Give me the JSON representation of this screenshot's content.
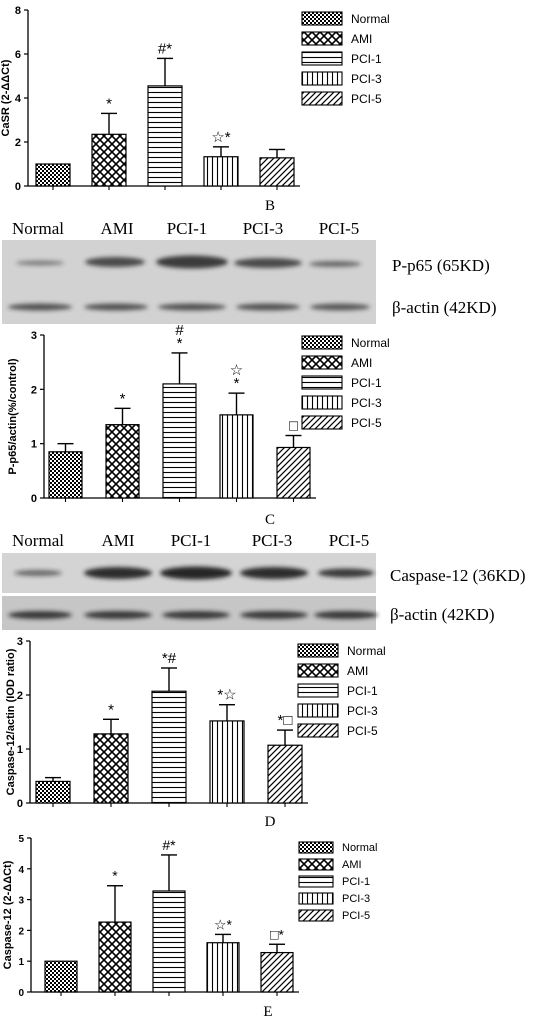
{
  "panels": [
    {
      "id": "B",
      "panel_letter": "B",
      "ylabel": "CaSR (2-ΔΔCt)",
      "ylim": [
        0,
        8
      ],
      "yticks": [
        "0",
        "2",
        "4",
        "6",
        "8"
      ],
      "marker_style": "star",
      "categories": [
        "Normal",
        "AMI",
        "PCI-1",
        "PCI-3",
        "PCI-5"
      ],
      "values": [
        1.0,
        2.35,
        4.55,
        1.33,
        1.28
      ],
      "errors": [
        0.0,
        0.95,
        1.25,
        0.45,
        0.38
      ],
      "annotations": [
        "",
        "*",
        "#*",
        "☆*",
        ""
      ],
      "legend": [
        "Normal",
        "AMI",
        "PCI-1",
        "PCI-3",
        "PCI-5"
      ]
    },
    {
      "id": "C",
      "panel_letter": "C",
      "ylabel": "P-p65/actin(%/control)",
      "ylim": [
        0,
        3
      ],
      "yticks": [
        "0",
        "1",
        "2",
        "3"
      ],
      "marker_style": "star",
      "categories": [
        "Normal",
        "AMI",
        "PCI-1",
        "PCI-3",
        "PCI-5"
      ],
      "values": [
        0.85,
        1.35,
        2.1,
        1.53,
        0.93
      ],
      "errors": [
        0.15,
        0.3,
        0.57,
        0.4,
        0.22
      ],
      "annotations": [
        "",
        "*",
        "#\n*",
        "☆\n*",
        "□"
      ],
      "legend": [
        "Normal",
        "AMI",
        "PCI-1",
        "PCI-3",
        "PCI-5"
      ]
    },
    {
      "id": "D",
      "panel_letter": "D",
      "ylabel": "Caspase-12/actin (IOD ratio)",
      "ylim": [
        0,
        3
      ],
      "yticks": [
        "0",
        "1",
        "2",
        "3"
      ],
      "marker_style": "star",
      "categories": [
        "Normal",
        "AMI",
        "PCI-1",
        "PCI-3",
        "PCI-5"
      ],
      "values": [
        0.4,
        1.28,
        2.07,
        1.52,
        1.07
      ],
      "errors": [
        0.07,
        0.27,
        0.43,
        0.3,
        0.28
      ],
      "annotations": [
        "",
        "*",
        "*#",
        "*☆",
        "*□"
      ],
      "legend": [
        "Normal",
        "AMI",
        "PCI-1",
        "PCI-3",
        "PCI-5"
      ]
    },
    {
      "id": "E",
      "panel_letter": "E",
      "ylabel": "Caspase-12 (2-ΔΔCt)",
      "ylim": [
        0,
        5
      ],
      "yticks": [
        "0",
        "1",
        "2",
        "3",
        "4",
        "5"
      ],
      "marker_style": "star",
      "categories": [
        "Normal",
        "AMI",
        "PCI-1",
        "PCI-3",
        "PCI-5"
      ],
      "values": [
        1.0,
        2.27,
        3.28,
        1.6,
        1.28
      ],
      "errors": [
        0.0,
        1.18,
        1.17,
        0.27,
        0.27
      ],
      "annotations": [
        "",
        "*",
        "#*",
        "☆*",
        "□*"
      ],
      "legend": [
        "Normal",
        "AMI",
        "PCI-1",
        "PCI-3",
        "PCI-5"
      ]
    }
  ],
  "blots": [
    {
      "id": "blot-p65",
      "lane_labels": [
        "Normal",
        "AMI",
        "PCI-1",
        "PCI-3",
        "PCI-5"
      ],
      "band_labels": [
        "P-p65 (65KD)",
        "β-actin (42KD)"
      ]
    },
    {
      "id": "blot-caspase",
      "lane_labels": [
        "Normal",
        "AMI",
        "PCI-1",
        "PCI-3",
        "PCI-5"
      ],
      "band_labels": [
        "Caspase-12 (36KD)",
        "β-actin (42KD)"
      ]
    }
  ],
  "chart_data": [
    {
      "type": "bar",
      "panel": "B",
      "categories": [
        "Normal",
        "AMI",
        "PCI-1",
        "PCI-3",
        "PCI-5"
      ],
      "values": [
        1.0,
        2.35,
        4.55,
        1.33,
        1.28
      ],
      "errors": [
        0.0,
        0.95,
        1.25,
        0.45,
        0.38
      ],
      "ylabel": "CaSR (2-ΔΔCt)",
      "ylim": [
        0,
        8
      ],
      "legend": "top-right"
    },
    {
      "type": "bar",
      "panel": "C",
      "categories": [
        "Normal",
        "AMI",
        "PCI-1",
        "PCI-3",
        "PCI-5"
      ],
      "values": [
        0.85,
        1.35,
        2.1,
        1.53,
        0.93
      ],
      "errors": [
        0.15,
        0.3,
        0.57,
        0.4,
        0.22
      ],
      "ylabel": "P-p65/actin(%/control)",
      "ylim": [
        0,
        3
      ],
      "legend": "top-right"
    },
    {
      "type": "bar",
      "panel": "D",
      "categories": [
        "Normal",
        "AMI",
        "PCI-1",
        "PCI-3",
        "PCI-5"
      ],
      "values": [
        0.4,
        1.28,
        2.07,
        1.52,
        1.07
      ],
      "errors": [
        0.07,
        0.27,
        0.43,
        0.3,
        0.28
      ],
      "ylabel": "Caspase-12/actin (IOD ratio)",
      "ylim": [
        0,
        3
      ],
      "legend": "top-right"
    },
    {
      "type": "bar",
      "panel": "E",
      "categories": [
        "Normal",
        "AMI",
        "PCI-1",
        "PCI-3",
        "PCI-5"
      ],
      "values": [
        1.0,
        2.27,
        3.28,
        1.6,
        1.28
      ],
      "errors": [
        0.0,
        1.18,
        1.17,
        0.27,
        0.27
      ],
      "ylabel": "Caspase-12 (2-ΔΔCt)",
      "ylim": [
        0,
        5
      ],
      "legend": "top-right"
    }
  ]
}
